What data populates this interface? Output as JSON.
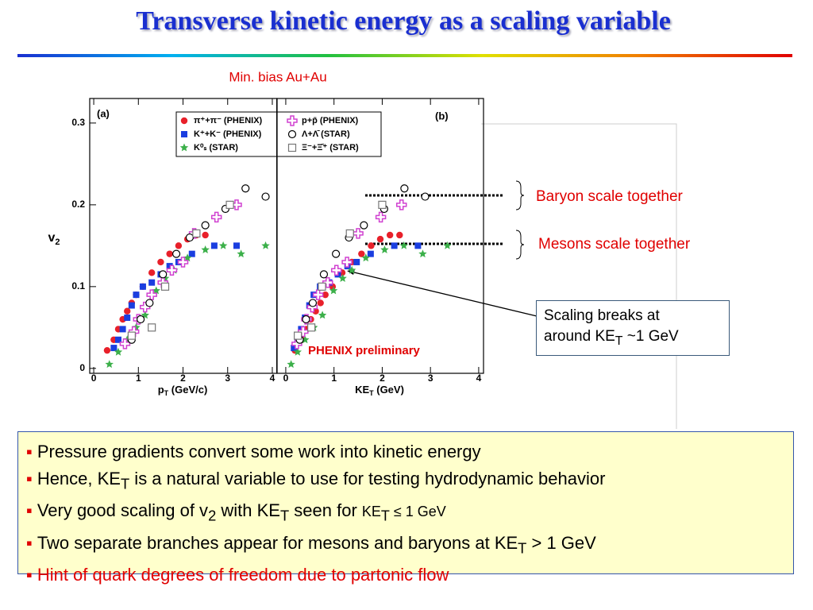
{
  "title": "Transverse kinetic energy as a scaling variable",
  "subtitle": "Min. bias Au+Au",
  "chart_data": [
    {
      "type": "scatter",
      "panel_label": "(a)",
      "y_label": [
        "v",
        "2"
      ],
      "x_label": [
        "p",
        "T",
        " (GeV/c)"
      ],
      "xlim": [
        -0.09,
        4.1
      ],
      "xticks": [
        0,
        1,
        2,
        3,
        4
      ],
      "ylim": [
        -0.006,
        0.33
      ],
      "yticks": [
        0,
        0.1,
        0.2,
        0.3
      ],
      "series": [
        {
          "name": "π⁺+π⁻ (PHENIX)",
          "marker": "circle",
          "color": "#e8202a",
          "x": [
            0.3,
            0.45,
            0.55,
            0.65,
            0.75,
            0.85,
            0.95,
            1.1,
            1.3,
            1.5,
            1.7,
            1.9,
            2.1,
            2.3,
            2.5
          ],
          "values": [
            0.022,
            0.035,
            0.048,
            0.06,
            0.07,
            0.08,
            0.09,
            0.1,
            0.117,
            0.13,
            0.14,
            0.15,
            0.158,
            0.163,
            0.163
          ]
        },
        {
          "name": "K⁺+K⁻ (PHENIX)",
          "marker": "square",
          "color": "#1a3ee0",
          "x": [
            0.45,
            0.55,
            0.65,
            0.75,
            0.85,
            0.95,
            1.1,
            1.3,
            1.5,
            1.7,
            1.9,
            2.2,
            2.7,
            3.2
          ],
          "values": [
            0.025,
            0.035,
            0.048,
            0.062,
            0.077,
            0.09,
            0.1,
            0.105,
            0.115,
            0.125,
            0.13,
            0.14,
            0.15,
            0.15
          ]
        },
        {
          "name": "K⁰ₛ (STAR)",
          "marker": "star",
          "color": "#3cb04a",
          "x": [
            0.35,
            0.55,
            0.75,
            0.95,
            1.15,
            1.4,
            1.6,
            1.8,
            2.1,
            2.5,
            2.9,
            3.3,
            3.85
          ],
          "values": [
            0.005,
            0.02,
            0.035,
            0.05,
            0.065,
            0.095,
            0.11,
            0.12,
            0.135,
            0.145,
            0.15,
            0.14,
            0.15
          ]
        },
        {
          "name": "p+p̄ (PHENIX)",
          "marker": "plus",
          "color": "#d040d0",
          "x": [
            0.7,
            0.9,
            1.0,
            1.15,
            1.3,
            1.55,
            1.75,
            2.0,
            2.25,
            2.75,
            3.2
          ],
          "values": [
            0.03,
            0.045,
            0.06,
            0.075,
            0.09,
            0.105,
            0.12,
            0.13,
            0.165,
            0.185,
            0.2
          ]
        },
        {
          "name": "Λ+Λ̄ (STAR)",
          "marker": "open-circle",
          "color": "#000000",
          "x": [
            0.85,
            1.05,
            1.25,
            1.55,
            1.85,
            2.15,
            2.5,
            2.95,
            3.4,
            3.85
          ],
          "values": [
            0.035,
            0.06,
            0.08,
            0.115,
            0.14,
            0.16,
            0.175,
            0.195,
            0.22,
            0.21
          ]
        },
        {
          "name": "Ξ⁻+Ξ̄⁺ (STAR)",
          "marker": "open-square",
          "color": "#777777",
          "x": [
            0.85,
            1.3,
            1.6,
            2.3,
            3.05
          ],
          "values": [
            0.04,
            0.05,
            0.1,
            0.165,
            0.2
          ]
        }
      ]
    },
    {
      "type": "scatter",
      "panel_label": "(b)",
      "x_label": [
        "KE",
        "T",
        " (GeV)"
      ],
      "xlim": [
        -0.18,
        4.1
      ],
      "xticks": [
        0,
        1,
        2,
        3,
        4
      ],
      "ylim": [
        -0.006,
        0.33
      ],
      "series": [
        {
          "marker": "circle",
          "color": "#e8202a",
          "x": [
            0.19,
            0.33,
            0.43,
            0.52,
            0.62,
            0.72,
            0.82,
            0.97,
            1.17,
            1.37,
            1.57,
            1.77,
            1.96,
            2.16,
            2.36
          ],
          "values": [
            0.022,
            0.035,
            0.048,
            0.06,
            0.07,
            0.08,
            0.09,
            0.1,
            0.117,
            0.13,
            0.14,
            0.15,
            0.158,
            0.163,
            0.163
          ]
        },
        {
          "marker": "square",
          "color": "#1a3ee0",
          "x": [
            0.17,
            0.245,
            0.32,
            0.4,
            0.49,
            0.58,
            0.71,
            0.9,
            1.08,
            1.28,
            1.47,
            1.76,
            2.25,
            2.74
          ],
          "values": [
            0.025,
            0.035,
            0.048,
            0.062,
            0.077,
            0.09,
            0.1,
            0.105,
            0.115,
            0.125,
            0.13,
            0.14,
            0.15,
            0.15
          ]
        },
        {
          "marker": "star",
          "color": "#3cb04a",
          "x": [
            0.11,
            0.245,
            0.4,
            0.58,
            0.76,
            0.99,
            1.18,
            1.37,
            1.66,
            2.05,
            2.45,
            2.84,
            3.35
          ],
          "values": [
            0.005,
            0.02,
            0.035,
            0.05,
            0.065,
            0.095,
            0.11,
            0.12,
            0.135,
            0.145,
            0.15,
            0.14,
            0.15
          ]
        },
        {
          "marker": "plus",
          "color": "#d040d0",
          "x": [
            0.23,
            0.36,
            0.43,
            0.55,
            0.67,
            0.87,
            1.05,
            1.27,
            1.5,
            1.97,
            2.4
          ],
          "values": [
            0.03,
            0.045,
            0.06,
            0.075,
            0.09,
            0.105,
            0.12,
            0.13,
            0.165,
            0.185,
            0.2
          ]
        },
        {
          "marker": "open-circle",
          "color": "#000000",
          "x": [
            0.29,
            0.42,
            0.56,
            0.79,
            1.04,
            1.31,
            1.62,
            2.04,
            2.46,
            2.89
          ],
          "values": [
            0.035,
            0.06,
            0.08,
            0.115,
            0.14,
            0.16,
            0.175,
            0.195,
            0.22,
            0.21
          ]
        },
        {
          "marker": "open-square",
          "color": "#777777",
          "x": [
            0.25,
            0.53,
            0.75,
            1.33,
            2.0
          ],
          "values": [
            0.04,
            0.05,
            0.1,
            0.165,
            0.2
          ]
        }
      ]
    }
  ],
  "preliminary": "PHENIX preliminary",
  "baryon_note": "Baryon scale together",
  "meson_note": "Mesons scale together",
  "callout": [
    "Scaling breaks at",
    "around KE",
    "T",
    " ~1 GeV"
  ],
  "bullets": [
    [
      "Pressure gradients convert some work into kinetic energy"
    ],
    [
      "Hence, KE",
      "T",
      " is a natural variable to use for testing hydrodynamic behavior"
    ],
    [
      "Very good scaling of v",
      "2",
      " with KE",
      "T",
      " seen for ",
      "KE",
      "T",
      " ≤ 1 GeV"
    ],
    [
      "Two separate branches appear for mesons and baryons at KE",
      "T",
      " > 1 GeV"
    ],
    [
      "Hint of quark degrees of freedom due to partonic flow"
    ]
  ]
}
